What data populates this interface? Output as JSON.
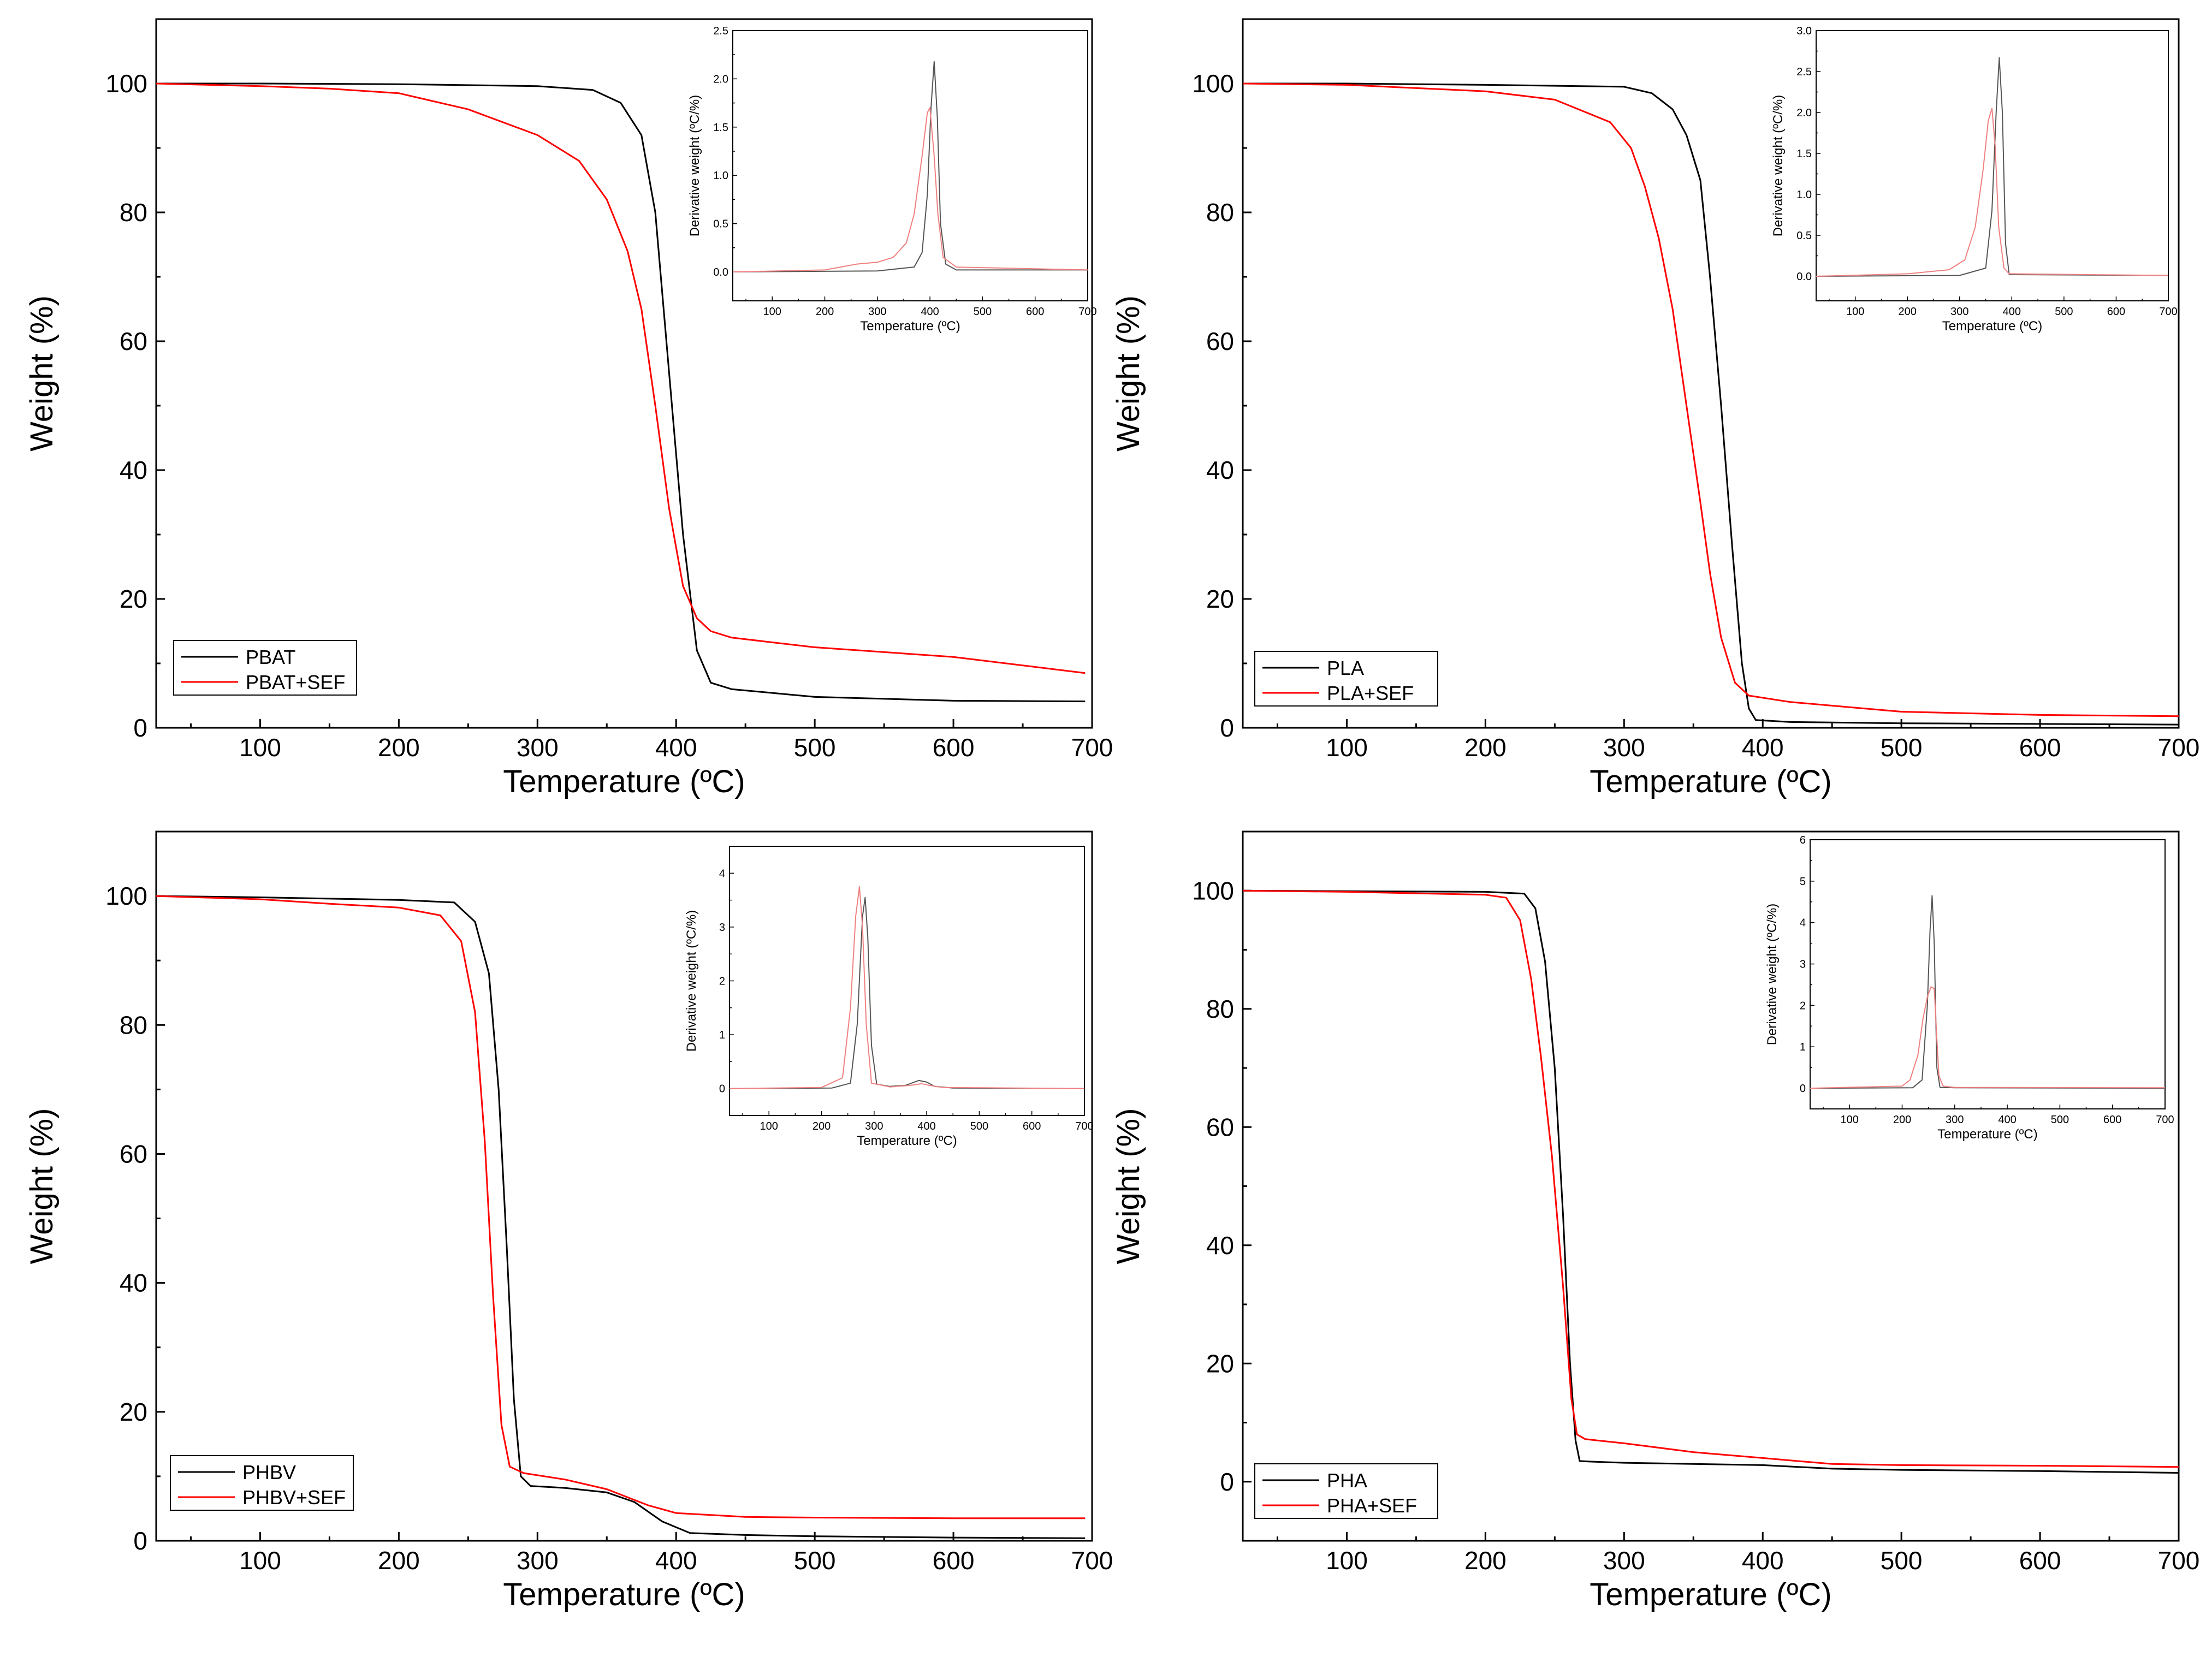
{
  "chart_data": [
    {
      "type": "line",
      "xlabel": "Temperature (ºC)",
      "ylabel": "Weight (%)",
      "xlim": [
        25,
        700
      ],
      "ylim": [
        0,
        110
      ],
      "xticks": [
        100,
        200,
        300,
        400,
        500,
        600,
        700
      ],
      "yticks": [
        0,
        20,
        40,
        60,
        80,
        100
      ],
      "legend_position": "bottom-left",
      "series": [
        {
          "name": "PBAT",
          "color": "#000000",
          "x": [
            25,
            100,
            200,
            300,
            340,
            360,
            375,
            385,
            395,
            405,
            415,
            425,
            440,
            500,
            600,
            695
          ],
          "y": [
            100,
            100,
            99.9,
            99.6,
            99,
            97,
            92,
            80,
            55,
            30,
            12,
            7,
            6,
            4.8,
            4.2,
            4.1
          ]
        },
        {
          "name": "PBAT+SEF",
          "color": "#ff0000",
          "x": [
            25,
            100,
            150,
            200,
            250,
            300,
            330,
            350,
            365,
            375,
            385,
            395,
            405,
            415,
            425,
            440,
            500,
            600,
            695
          ],
          "y": [
            100,
            99.6,
            99.2,
            98.5,
            96,
            92,
            88,
            82,
            74,
            65,
            50,
            34,
            22,
            17,
            15,
            14,
            12.5,
            11,
            8.5
          ]
        }
      ],
      "inset": {
        "xlabel": "Temperature (ºC)",
        "ylabel": "Derivative weight (ºC/%)",
        "xlim": [
          25,
          700
        ],
        "ylim": [
          -0.3,
          2.5
        ],
        "xticks": [
          100,
          200,
          300,
          400,
          500,
          600,
          700
        ],
        "yticks": [
          0.0,
          0.5,
          1.0,
          1.5,
          2.0,
          2.5
        ],
        "series": [
          {
            "name": "PBAT",
            "color": "#555555",
            "x": [
              25,
              300,
              370,
              385,
              395,
              402,
              408,
              414,
              420,
              430,
              450,
              700
            ],
            "y": [
              0,
              0.01,
              0.05,
              0.2,
              0.8,
              1.7,
              2.18,
              1.6,
              0.5,
              0.08,
              0.02,
              0.02
            ]
          },
          {
            "name": "PBAT+SEF",
            "color": "#f08080",
            "x": [
              25,
              200,
              260,
              300,
              330,
              355,
              370,
              385,
              395,
              400,
              408,
              415,
              425,
              450,
              700
            ],
            "y": [
              0,
              0.02,
              0.08,
              0.1,
              0.15,
              0.3,
              0.6,
              1.2,
              1.65,
              1.7,
              1.2,
              0.6,
              0.15,
              0.05,
              0.02
            ]
          }
        ]
      }
    },
    {
      "type": "line",
      "xlabel": "Temperature (ºC)",
      "ylabel": "Weight (%)",
      "xlim": [
        25,
        700
      ],
      "ylim": [
        0,
        110
      ],
      "xticks": [
        100,
        200,
        300,
        400,
        500,
        600,
        700
      ],
      "yticks": [
        0,
        20,
        40,
        60,
        80,
        100
      ],
      "legend_position": "bottom-left",
      "series": [
        {
          "name": "PLA",
          "color": "#000000",
          "x": [
            25,
            100,
            200,
            300,
            320,
            335,
            345,
            355,
            362,
            370,
            378,
            385,
            390,
            395,
            420,
            500,
            600,
            700
          ],
          "y": [
            100,
            100,
            99.8,
            99.5,
            98.5,
            96,
            92,
            85,
            70,
            50,
            28,
            10,
            3,
            1.2,
            0.9,
            0.7,
            0.6,
            0.5
          ]
        },
        {
          "name": "PLA+SEF",
          "color": "#ff0000",
          "x": [
            25,
            100,
            200,
            250,
            290,
            305,
            315,
            325,
            335,
            345,
            355,
            362,
            370,
            380,
            390,
            420,
            500,
            600,
            700
          ],
          "y": [
            100,
            99.8,
            98.8,
            97.5,
            94,
            90,
            84,
            76,
            65,
            50,
            35,
            24,
            14,
            7,
            5,
            4,
            2.5,
            2.0,
            1.8
          ]
        }
      ],
      "inset": {
        "xlabel": "Temperature (ºC)",
        "ylabel": "Derivative weight (ºC/%)",
        "xlim": [
          25,
          700
        ],
        "ylim": [
          -0.3,
          3.0
        ],
        "xticks": [
          100,
          200,
          300,
          400,
          500,
          600,
          700
        ],
        "yticks": [
          0.0,
          0.5,
          1.0,
          1.5,
          2.0,
          2.5,
          3.0
        ],
        "series": [
          {
            "name": "PLA",
            "color": "#555555",
            "x": [
              25,
              300,
              350,
              362,
              370,
              376,
              382,
              388,
              395,
              700
            ],
            "y": [
              0,
              0.01,
              0.1,
              0.8,
              2.0,
              2.67,
              2.0,
              0.4,
              0.02,
              0.01
            ]
          },
          {
            "name": "PLA+SEF",
            "color": "#f08080",
            "x": [
              25,
              200,
              280,
              310,
              330,
              345,
              355,
              362,
              368,
              375,
              385,
              395,
              700
            ],
            "y": [
              0,
              0.03,
              0.08,
              0.2,
              0.6,
              1.3,
              1.9,
              2.05,
              1.6,
              0.6,
              0.1,
              0.03,
              0.01
            ]
          }
        ]
      }
    },
    {
      "type": "line",
      "xlabel": "Temperature (ºC)",
      "ylabel": "Weight (%)",
      "xlim": [
        25,
        700
      ],
      "ylim": [
        0,
        110
      ],
      "xticks": [
        100,
        200,
        300,
        400,
        500,
        600,
        700
      ],
      "yticks": [
        0,
        20,
        40,
        60,
        80,
        100
      ],
      "legend_position": "bottom-left",
      "series": [
        {
          "name": "PHBV",
          "color": "#000000",
          "x": [
            25,
            100,
            200,
            240,
            255,
            265,
            272,
            278,
            283,
            288,
            295,
            320,
            350,
            370,
            390,
            410,
            450,
            500,
            600,
            695
          ],
          "y": [
            100,
            99.8,
            99.4,
            99,
            96,
            88,
            70,
            45,
            22,
            10,
            8.5,
            8.2,
            7.5,
            6,
            3,
            1.2,
            0.9,
            0.7,
            0.5,
            0.4
          ]
        },
        {
          "name": "PHBV+SEF",
          "color": "#ff0000",
          "x": [
            25,
            100,
            150,
            200,
            230,
            245,
            255,
            262,
            268,
            274,
            280,
            290,
            320,
            350,
            380,
            400,
            450,
            500,
            600,
            695
          ],
          "y": [
            100,
            99.5,
            98.8,
            98.2,
            97,
            93,
            82,
            62,
            38,
            18,
            11.5,
            10.5,
            9.5,
            8,
            5.5,
            4.3,
            3.7,
            3.6,
            3.5,
            3.5
          ]
        }
      ],
      "inset": {
        "xlabel": "Temperature (ºC)",
        "ylabel": "Derivative weight (ºC/%)",
        "xlim": [
          25,
          700
        ],
        "ylim": [
          -0.5,
          4.5
        ],
        "xticks": [
          100,
          200,
          300,
          400,
          500,
          600,
          700
        ],
        "yticks": [
          0,
          1,
          2,
          3,
          4
        ],
        "series": [
          {
            "name": "PHBV",
            "color": "#555555",
            "x": [
              25,
              220,
              255,
              268,
              278,
              283,
              288,
              295,
              305,
              330,
              360,
              385,
              400,
              415,
              450,
              700
            ],
            "y": [
              0,
              0.01,
              0.1,
              1.2,
              3.2,
              3.55,
              2.8,
              0.8,
              0.08,
              0.04,
              0.06,
              0.15,
              0.12,
              0.04,
              0.01,
              0.0
            ]
          },
          {
            "name": "PHBV+SEF",
            "color": "#f08080",
            "x": [
              25,
              200,
              240,
              255,
              265,
              272,
              278,
              285,
              295,
              330,
              370,
              390,
              405,
              430,
              700
            ],
            "y": [
              0,
              0.02,
              0.2,
              1.5,
              3.2,
              3.75,
              3.0,
              1.2,
              0.1,
              0.03,
              0.06,
              0.09,
              0.06,
              0.02,
              0.0
            ]
          }
        ]
      }
    },
    {
      "type": "line",
      "xlabel": "Temperature (ºC)",
      "ylabel": "Weight (%)",
      "xlim": [
        25,
        700
      ],
      "ylim": [
        -10,
        110
      ],
      "xticks": [
        100,
        200,
        300,
        400,
        500,
        600,
        700
      ],
      "yticks": [
        0,
        20,
        40,
        60,
        80,
        100
      ],
      "legend_position": "bottom-left",
      "series": [
        {
          "name": "PHA",
          "color": "#000000",
          "x": [
            25,
            100,
            200,
            228,
            236,
            243,
            250,
            256,
            261,
            265,
            268,
            275,
            300,
            400,
            450,
            500,
            600,
            700
          ],
          "y": [
            100,
            99.9,
            99.8,
            99.5,
            97,
            88,
            70,
            45,
            20,
            7,
            3.5,
            3.4,
            3.2,
            2.8,
            2.2,
            2.0,
            1.8,
            1.5
          ]
        },
        {
          "name": "PHA+SEF",
          "color": "#ff0000",
          "x": [
            25,
            100,
            200,
            215,
            225,
            233,
            240,
            248,
            256,
            262,
            266,
            272,
            300,
            350,
            400,
            450,
            500,
            600,
            700
          ],
          "y": [
            100,
            99.8,
            99.3,
            98.8,
            95,
            85,
            72,
            55,
            33,
            14,
            8,
            7.2,
            6.5,
            5,
            4,
            3,
            2.8,
            2.7,
            2.5
          ]
        }
      ],
      "inset": {
        "xlabel": "Temperature (ºC)",
        "ylabel": "Derivative weight (ºC/%)",
        "xlim": [
          25,
          700
        ],
        "ylim": [
          -0.5,
          6.0
        ],
        "xticks": [
          100,
          200,
          300,
          400,
          500,
          600,
          700
        ],
        "yticks": [
          0,
          1,
          2,
          3,
          4,
          5,
          6
        ],
        "series": [
          {
            "name": "PHA",
            "color": "#555555",
            "x": [
              25,
              220,
              238,
              248,
              253,
              257,
              261,
              266,
              272,
              300,
              700
            ],
            "y": [
              0,
              0.01,
              0.2,
              2.0,
              3.8,
              4.65,
              3.5,
              0.5,
              0.02,
              0.01,
              0.0
            ]
          },
          {
            "name": "PHA+SEF",
            "color": "#f08080",
            "x": [
              25,
              200,
              215,
              230,
              240,
              248,
              255,
              261,
              266,
              270,
              278,
              300,
              700
            ],
            "y": [
              0,
              0.05,
              0.2,
              0.8,
              1.7,
              2.2,
              2.45,
              2.4,
              1.2,
              0.3,
              0.05,
              0.02,
              0.01
            ]
          }
        ]
      }
    }
  ]
}
